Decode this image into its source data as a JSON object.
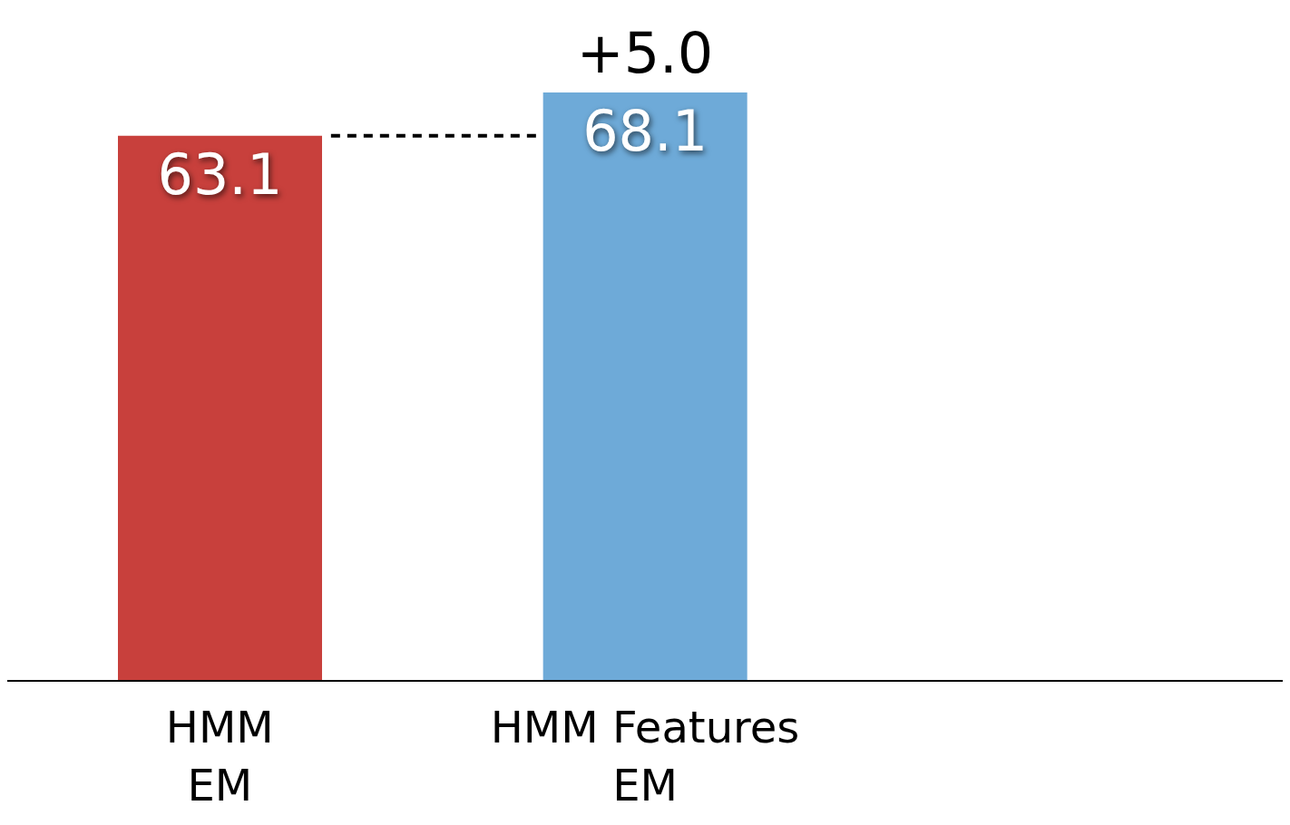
{
  "chart_data": {
    "type": "bar",
    "categories": [
      "HMM\nEM",
      "HMM Features\nEM",
      null
    ],
    "values": [
      63.1,
      68.1,
      null
    ],
    "colors": [
      "#c8403c",
      "#6eaad8",
      null
    ],
    "data_labels": true,
    "ref_lines": [
      {
        "axis": "y",
        "value": 63.1,
        "line_style": "dashed",
        "color": "#000000"
      }
    ],
    "annotations": [
      {
        "text": "+5.0",
        "x": "HMM Features\nEM",
        "y": 68.1
      }
    ],
    "grid": false,
    "legend": false
  }
}
